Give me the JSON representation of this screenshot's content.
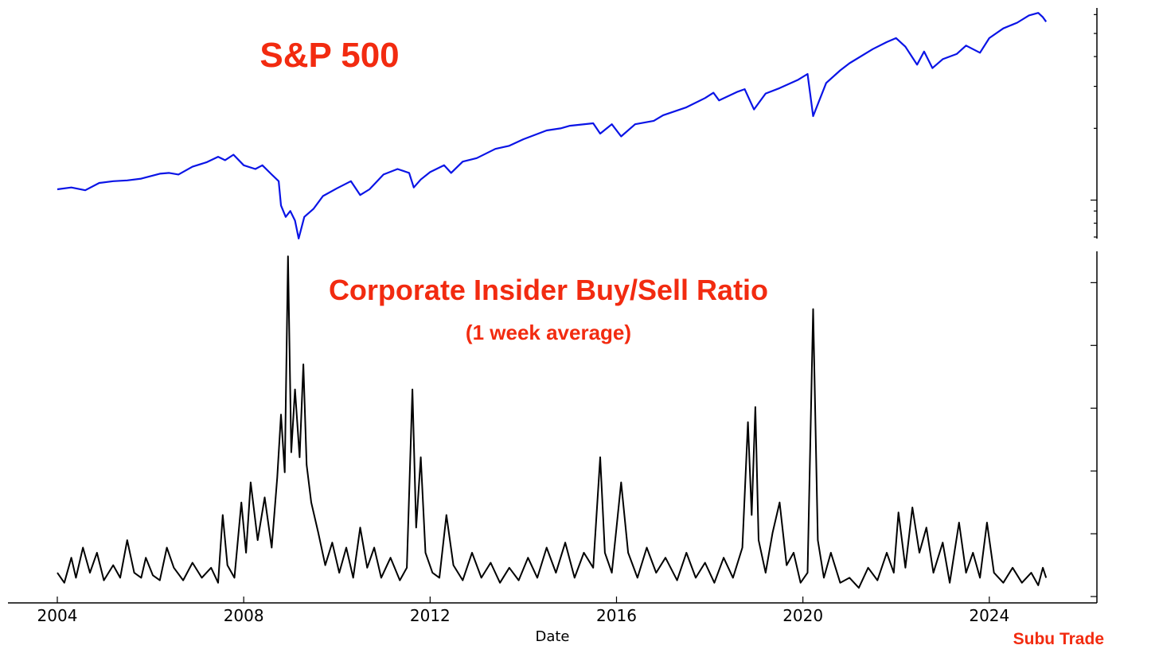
{
  "colors": {
    "sp500_line": "#0a14e6",
    "ratio_line": "#000000",
    "title_red": "#f22b10",
    "axis": "#000000"
  },
  "chart_data": [
    {
      "type": "line",
      "title": "S&P 500",
      "yscale": "log",
      "ylim": [
        700,
        6300
      ],
      "x_range": [
        2004,
        2025.25
      ],
      "grid": false,
      "y_tick_labels_visible": false,
      "series": [
        {
          "points": [
            [
              2004.0,
              1110
            ],
            [
              2004.3,
              1130
            ],
            [
              2004.6,
              1100
            ],
            [
              2004.9,
              1180
            ],
            [
              2005.2,
              1200
            ],
            [
              2005.5,
              1210
            ],
            [
              2005.8,
              1230
            ],
            [
              2006.2,
              1290
            ],
            [
              2006.4,
              1300
            ],
            [
              2006.6,
              1280
            ],
            [
              2006.9,
              1380
            ],
            [
              2007.2,
              1440
            ],
            [
              2007.45,
              1520
            ],
            [
              2007.6,
              1470
            ],
            [
              2007.78,
              1550
            ],
            [
              2008.0,
              1400
            ],
            [
              2008.25,
              1350
            ],
            [
              2008.4,
              1400
            ],
            [
              2008.6,
              1280
            ],
            [
              2008.75,
              1200
            ],
            [
              2008.8,
              950
            ],
            [
              2008.9,
              850
            ],
            [
              2009.0,
              900
            ],
            [
              2009.1,
              820
            ],
            [
              2009.18,
              690
            ],
            [
              2009.3,
              850
            ],
            [
              2009.5,
              920
            ],
            [
              2009.7,
              1040
            ],
            [
              2010.0,
              1120
            ],
            [
              2010.3,
              1200
            ],
            [
              2010.5,
              1050
            ],
            [
              2010.7,
              1110
            ],
            [
              2011.0,
              1280
            ],
            [
              2011.3,
              1350
            ],
            [
              2011.55,
              1300
            ],
            [
              2011.65,
              1130
            ],
            [
              2011.8,
              1220
            ],
            [
              2012.0,
              1310
            ],
            [
              2012.3,
              1400
            ],
            [
              2012.45,
              1300
            ],
            [
              2012.7,
              1450
            ],
            [
              2013.0,
              1500
            ],
            [
              2013.4,
              1640
            ],
            [
              2013.7,
              1690
            ],
            [
              2014.0,
              1800
            ],
            [
              2014.5,
              1960
            ],
            [
              2014.8,
              2000
            ],
            [
              2015.0,
              2050
            ],
            [
              2015.5,
              2100
            ],
            [
              2015.65,
              1900
            ],
            [
              2015.9,
              2080
            ],
            [
              2016.1,
              1850
            ],
            [
              2016.4,
              2080
            ],
            [
              2016.8,
              2150
            ],
            [
              2017.0,
              2270
            ],
            [
              2017.5,
              2450
            ],
            [
              2017.9,
              2680
            ],
            [
              2018.08,
              2820
            ],
            [
              2018.2,
              2620
            ],
            [
              2018.6,
              2850
            ],
            [
              2018.75,
              2920
            ],
            [
              2018.95,
              2400
            ],
            [
              2019.2,
              2800
            ],
            [
              2019.5,
              2950
            ],
            [
              2019.9,
              3200
            ],
            [
              2020.1,
              3380
            ],
            [
              2020.22,
              2250
            ],
            [
              2020.5,
              3100
            ],
            [
              2020.8,
              3500
            ],
            [
              2021.0,
              3750
            ],
            [
              2021.5,
              4300
            ],
            [
              2021.8,
              4600
            ],
            [
              2022.0,
              4780
            ],
            [
              2022.2,
              4400
            ],
            [
              2022.45,
              3700
            ],
            [
              2022.6,
              4200
            ],
            [
              2022.78,
              3580
            ],
            [
              2023.0,
              3900
            ],
            [
              2023.3,
              4100
            ],
            [
              2023.5,
              4450
            ],
            [
              2023.8,
              4150
            ],
            [
              2024.0,
              4780
            ],
            [
              2024.3,
              5250
            ],
            [
              2024.6,
              5550
            ],
            [
              2024.85,
              5950
            ],
            [
              2025.05,
              6100
            ],
            [
              2025.15,
              5850
            ],
            [
              2025.22,
              5600
            ]
          ]
        }
      ]
    },
    {
      "type": "line",
      "title": "Corporate Insider Buy/Sell Ratio",
      "subtitle": "(1 week average)",
      "xlabel": "Date",
      "ylim": [
        0,
        1.4
      ],
      "x_range": [
        2004,
        2025.25
      ],
      "grid": false,
      "y_tick_labels_visible": false,
      "x_ticks": [
        "2004",
        "2008",
        "2012",
        "2016",
        "2020",
        "2024"
      ],
      "series": [
        {
          "points": [
            [
              2004.0,
              0.12
            ],
            [
              2004.15,
              0.08
            ],
            [
              2004.3,
              0.18
            ],
            [
              2004.4,
              0.1
            ],
            [
              2004.55,
              0.22
            ],
            [
              2004.7,
              0.12
            ],
            [
              2004.85,
              0.2
            ],
            [
              2005.0,
              0.09
            ],
            [
              2005.2,
              0.15
            ],
            [
              2005.35,
              0.1
            ],
            [
              2005.5,
              0.25
            ],
            [
              2005.65,
              0.12
            ],
            [
              2005.8,
              0.1
            ],
            [
              2005.9,
              0.18
            ],
            [
              2006.05,
              0.11
            ],
            [
              2006.2,
              0.09
            ],
            [
              2006.35,
              0.22
            ],
            [
              2006.5,
              0.14
            ],
            [
              2006.7,
              0.09
            ],
            [
              2006.9,
              0.16
            ],
            [
              2007.1,
              0.1
            ],
            [
              2007.3,
              0.14
            ],
            [
              2007.45,
              0.08
            ],
            [
              2007.55,
              0.35
            ],
            [
              2007.65,
              0.15
            ],
            [
              2007.8,
              0.1
            ],
            [
              2007.95,
              0.4
            ],
            [
              2008.05,
              0.2
            ],
            [
              2008.15,
              0.48
            ],
            [
              2008.3,
              0.25
            ],
            [
              2008.45,
              0.42
            ],
            [
              2008.6,
              0.22
            ],
            [
              2008.72,
              0.5
            ],
            [
              2008.8,
              0.75
            ],
            [
              2008.88,
              0.52
            ],
            [
              2008.95,
              1.38
            ],
            [
              2009.02,
              0.6
            ],
            [
              2009.1,
              0.85
            ],
            [
              2009.2,
              0.58
            ],
            [
              2009.28,
              0.95
            ],
            [
              2009.35,
              0.55
            ],
            [
              2009.45,
              0.4
            ],
            [
              2009.6,
              0.28
            ],
            [
              2009.75,
              0.15
            ],
            [
              2009.9,
              0.24
            ],
            [
              2010.05,
              0.12
            ],
            [
              2010.2,
              0.22
            ],
            [
              2010.35,
              0.1
            ],
            [
              2010.5,
              0.3
            ],
            [
              2010.65,
              0.14
            ],
            [
              2010.8,
              0.22
            ],
            [
              2010.95,
              0.1
            ],
            [
              2011.15,
              0.18
            ],
            [
              2011.35,
              0.09
            ],
            [
              2011.5,
              0.14
            ],
            [
              2011.62,
              0.85
            ],
            [
              2011.7,
              0.3
            ],
            [
              2011.8,
              0.58
            ],
            [
              2011.9,
              0.2
            ],
            [
              2012.05,
              0.12
            ],
            [
              2012.2,
              0.1
            ],
            [
              2012.35,
              0.35
            ],
            [
              2012.5,
              0.15
            ],
            [
              2012.7,
              0.09
            ],
            [
              2012.9,
              0.2
            ],
            [
              2013.1,
              0.1
            ],
            [
              2013.3,
              0.16
            ],
            [
              2013.5,
              0.08
            ],
            [
              2013.7,
              0.14
            ],
            [
              2013.9,
              0.09
            ],
            [
              2014.1,
              0.18
            ],
            [
              2014.3,
              0.1
            ],
            [
              2014.5,
              0.22
            ],
            [
              2014.7,
              0.12
            ],
            [
              2014.9,
              0.24
            ],
            [
              2015.1,
              0.1
            ],
            [
              2015.3,
              0.2
            ],
            [
              2015.5,
              0.14
            ],
            [
              2015.65,
              0.58
            ],
            [
              2015.75,
              0.2
            ],
            [
              2015.9,
              0.12
            ],
            [
              2016.0,
              0.3
            ],
            [
              2016.1,
              0.48
            ],
            [
              2016.25,
              0.2
            ],
            [
              2016.45,
              0.1
            ],
            [
              2016.65,
              0.22
            ],
            [
              2016.85,
              0.12
            ],
            [
              2017.05,
              0.18
            ],
            [
              2017.3,
              0.09
            ],
            [
              2017.5,
              0.2
            ],
            [
              2017.7,
              0.1
            ],
            [
              2017.9,
              0.16
            ],
            [
              2018.1,
              0.08
            ],
            [
              2018.3,
              0.18
            ],
            [
              2018.5,
              0.1
            ],
            [
              2018.7,
              0.22
            ],
            [
              2018.82,
              0.72
            ],
            [
              2018.9,
              0.35
            ],
            [
              2018.98,
              0.78
            ],
            [
              2019.05,
              0.25
            ],
            [
              2019.2,
              0.12
            ],
            [
              2019.35,
              0.28
            ],
            [
              2019.5,
              0.4
            ],
            [
              2019.65,
              0.15
            ],
            [
              2019.8,
              0.2
            ],
            [
              2019.95,
              0.08
            ],
            [
              2020.1,
              0.12
            ],
            [
              2020.22,
              1.17
            ],
            [
              2020.32,
              0.25
            ],
            [
              2020.45,
              0.1
            ],
            [
              2020.6,
              0.2
            ],
            [
              2020.8,
              0.08
            ],
            [
              2021.0,
              0.1
            ],
            [
              2021.2,
              0.06
            ],
            [
              2021.4,
              0.14
            ],
            [
              2021.6,
              0.09
            ],
            [
              2021.8,
              0.2
            ],
            [
              2021.95,
              0.12
            ],
            [
              2022.05,
              0.36
            ],
            [
              2022.2,
              0.14
            ],
            [
              2022.35,
              0.38
            ],
            [
              2022.5,
              0.2
            ],
            [
              2022.65,
              0.3
            ],
            [
              2022.8,
              0.12
            ],
            [
              2023.0,
              0.24
            ],
            [
              2023.15,
              0.08
            ],
            [
              2023.35,
              0.32
            ],
            [
              2023.5,
              0.12
            ],
            [
              2023.65,
              0.2
            ],
            [
              2023.8,
              0.1
            ],
            [
              2023.95,
              0.32
            ],
            [
              2024.1,
              0.12
            ],
            [
              2024.3,
              0.08
            ],
            [
              2024.5,
              0.14
            ],
            [
              2024.7,
              0.08
            ],
            [
              2024.9,
              0.12
            ],
            [
              2025.05,
              0.07
            ],
            [
              2025.15,
              0.14
            ],
            [
              2025.22,
              0.1
            ]
          ]
        }
      ]
    }
  ],
  "credit": "Subu Trade"
}
